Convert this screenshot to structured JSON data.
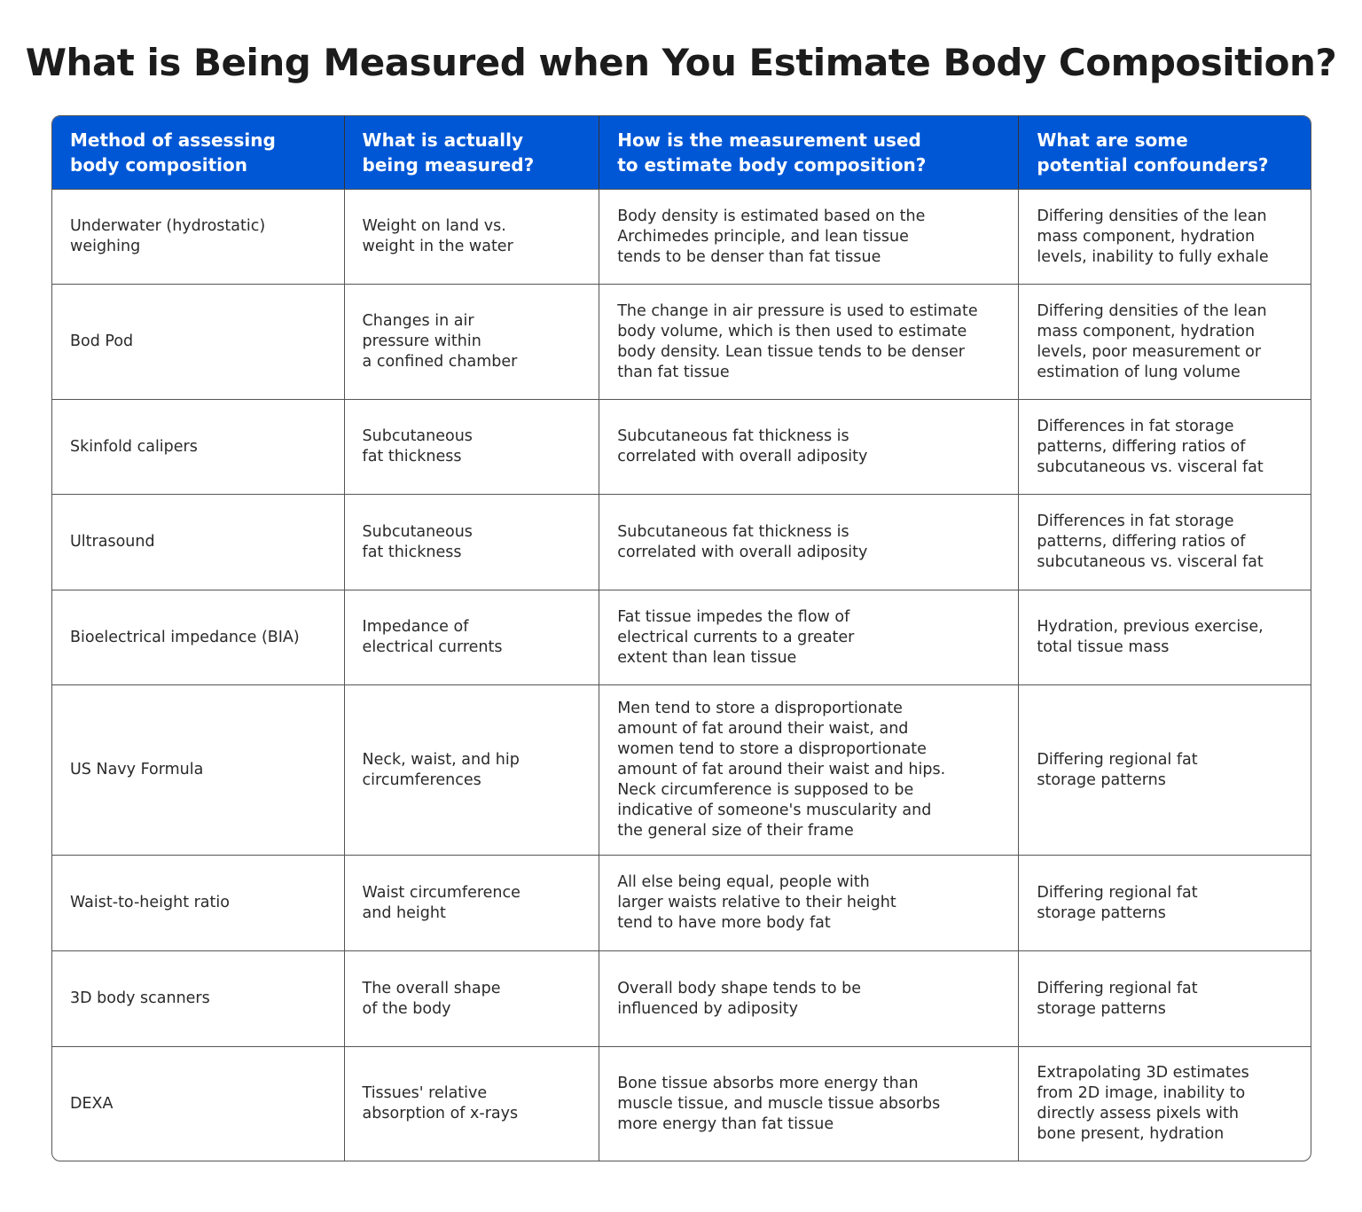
{
  "title": "What is Being Measured when You Estimate Body Composition?",
  "colors": {
    "header_bg": "#0057d6",
    "header_text": "#ffffff"
  },
  "headers": [
    "Method of assessing\nbody composition",
    "What is actually\nbeing measured?",
    "How is the measurement used\nto estimate body composition?",
    "What are some\npotential confounders?"
  ],
  "rows": [
    [
      "Underwater (hydrostatic)\nweighing",
      "Weight on land vs.\nweight in the water",
      "Body density is estimated based on the\nArchimedes principle, and lean tissue\ntends to be denser than fat tissue",
      "Differing densities of the lean\nmass component, hydration\nlevels, inability to fully exhale"
    ],
    [
      "Bod Pod",
      "Changes in air\npressure within\na confined chamber",
      "The change in air pressure is used to estimate\nbody volume, which is then used to estimate\nbody density. Lean tissue tends to be denser\nthan fat tissue",
      "Differing densities of the lean\nmass component, hydration\nlevels, poor measurement or\nestimation of lung volume"
    ],
    [
      "Skinfold calipers",
      "Subcutaneous\nfat thickness",
      "Subcutaneous fat thickness is\ncorrelated with overall adiposity",
      "Differences in fat storage\npatterns, differing ratios of\nsubcutaneous vs. visceral fat"
    ],
    [
      "Ultrasound",
      "Subcutaneous\nfat thickness",
      "Subcutaneous fat thickness is\ncorrelated with overall adiposity",
      "Differences in fat storage\npatterns, differing ratios of\nsubcutaneous vs. visceral fat"
    ],
    [
      "Bioelectrical impedance (BIA)",
      "Impedance of\nelectrical currents",
      "Fat tissue impedes the flow of\nelectrical currents to a greater\nextent than lean tissue",
      "Hydration, previous exercise,\ntotal tissue mass"
    ],
    [
      "US Navy Formula",
      "Neck, waist, and hip\ncircumferences",
      "Men tend to store a disproportionate\namount of fat around their waist, and\nwomen tend to store a disproportionate\namount of fat around their waist and hips.\nNeck circumference is supposed to be\nindicative of someone's muscularity and\nthe general size of their frame",
      "Differing regional fat\nstorage patterns"
    ],
    [
      "Waist-to-height ratio",
      "Waist circumference\nand height",
      "All else being equal, people with\nlarger waists relative to their height\ntend to have more body fat",
      "Differing regional fat\nstorage patterns"
    ],
    [
      "3D body scanners",
      "The overall shape\nof the body",
      "Overall body shape tends to be\ninfluenced by adiposity",
      "Differing regional fat\nstorage patterns"
    ],
    [
      "DEXA",
      "Tissues' relative\nabsorption of x-rays",
      "Bone tissue absorbs more energy than\nmuscle tissue, and muscle tissue absorbs\nmore energy than fat tissue",
      "Extrapolating 3D estimates\nfrom 2D image, inability to\ndirectly assess pixels with\nbone present, hydration"
    ]
  ]
}
